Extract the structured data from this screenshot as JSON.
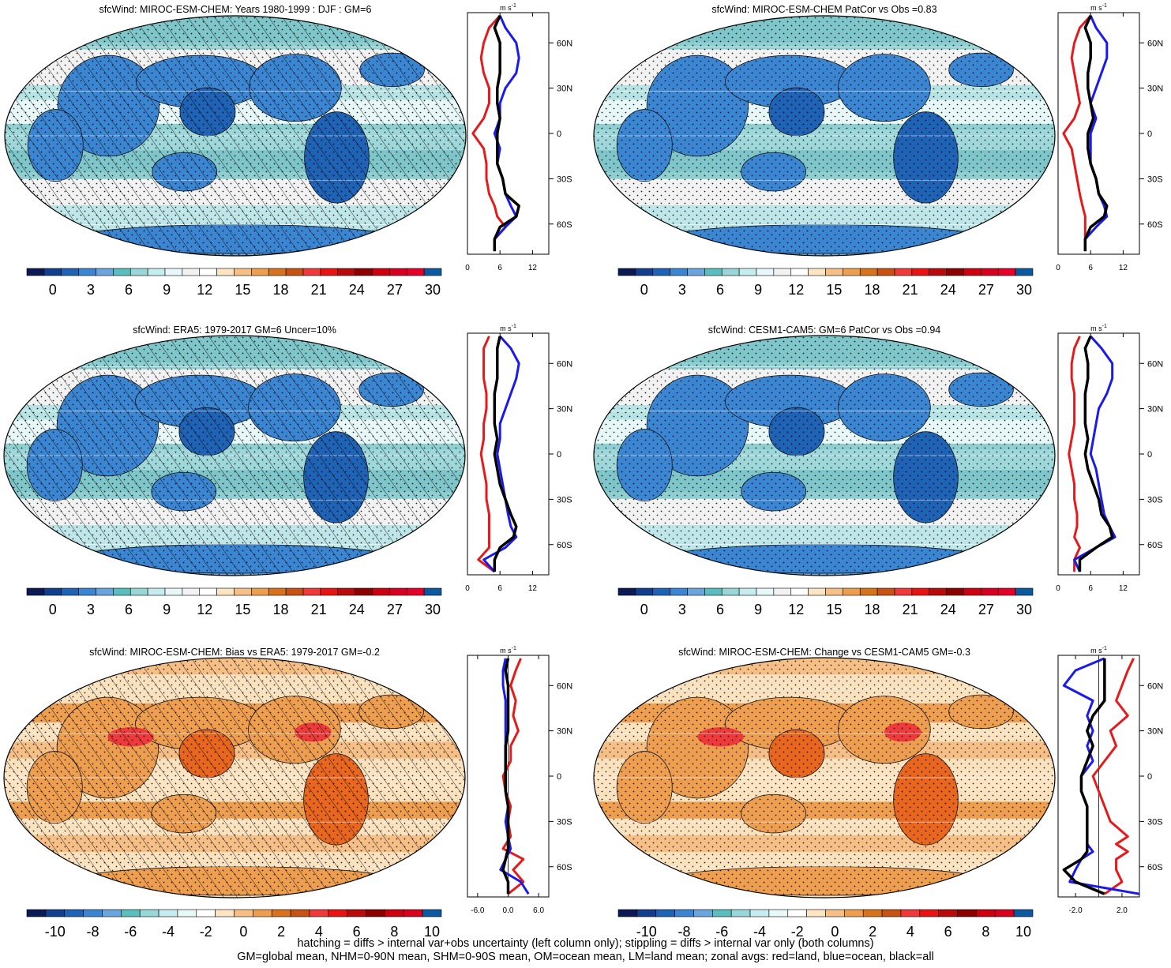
{
  "footer": {
    "line1": "hatching = diffs > internal var+obs uncertainty (left column only); stippling = diffs > internal var only (both columns)",
    "line2": "GM=global mean, NHM=0-90N mean, SHM=0-90S mean, OM=ocean mean, LM=land mean; zonal avgs: red=land, blue=ocean, black=all"
  },
  "colors": {
    "abs_scale": [
      "#0b1a55",
      "#113f8e",
      "#1e63b5",
      "#3b86d2",
      "#6aa5de",
      "#5cbdbf",
      "#99d6d8",
      "#c5ecee",
      "#e8f8f8",
      "#f2f2f2",
      "#ffffff",
      "#fde5c4",
      "#f6bf85",
      "#ee9e4f",
      "#d8731d",
      "#c85214",
      "#ee3a3a",
      "#e81313",
      "#b80c0c",
      "#8c0000",
      "#cc0010",
      "#d8001f",
      "#e5002c",
      "#0b5aa0"
    ],
    "diff_scale": [
      "#0b1a55",
      "#113f8e",
      "#1e63b5",
      "#3b86d2",
      "#6aa5de",
      "#5cbdbf",
      "#99d6d8",
      "#c5ecee",
      "#e8f8f8",
      "#ffffff",
      "#fde5c4",
      "#f6bf85",
      "#ee9e4f",
      "#d8731d",
      "#c85214",
      "#ee3a3a",
      "#e81313",
      "#b80c0c",
      "#8c0000",
      "#cc0010",
      "#d8001f",
      "#0b5aa0"
    ],
    "land": "#e61a1a",
    "ocean": "#1a1aee",
    "all": "#000000"
  },
  "chart_data": [
    {
      "type": "heatmap",
      "title": "sfcWind: MIROC-ESM-CHEM: Years 1980-1999 : DJF : GM=6",
      "colorbar_labels": [
        "0",
        "3",
        "6",
        "9",
        "12",
        "15",
        "18",
        "21",
        "24",
        "27",
        "30"
      ],
      "hatched": true,
      "tint": "blue",
      "zonal_mean": {
        "unit": "m s",
        "unit_sup": "-1",
        "x_ticks": [
          "0",
          "6",
          "12"
        ],
        "xlim": [
          0,
          15
        ],
        "y_ticks": [
          "60N",
          "30N",
          "0",
          "30S",
          "60S"
        ],
        "ylim": [
          -80,
          80
        ],
        "lat": [
          78,
          70,
          60,
          50,
          40,
          30,
          20,
          10,
          0,
          -10,
          -20,
          -30,
          -40,
          -48,
          -55,
          -62,
          -70,
          -78
        ],
        "land": [
          6,
          4,
          3,
          2.5,
          3,
          4,
          4,
          3,
          1,
          3,
          3.5,
          3.5,
          4,
          5,
          5.5,
          7,
          5,
          5
        ],
        "ocean": [
          6,
          7,
          9,
          9.5,
          9,
          7,
          6,
          6,
          5,
          6,
          5.5,
          6.5,
          7,
          8,
          9,
          7,
          5,
          5
        ],
        "all": [
          6,
          5,
          6,
          6,
          6,
          5.5,
          5.5,
          6,
          5.5,
          5.5,
          5.5,
          6.5,
          7,
          9.5,
          9,
          6,
          5,
          5
        ]
      }
    },
    {
      "type": "heatmap",
      "title": "sfcWind: MIROC-ESM-CHEM PatCor vs Obs =0.83",
      "colorbar_labels": [
        "0",
        "3",
        "6",
        "9",
        "12",
        "15",
        "18",
        "21",
        "24",
        "27",
        "30"
      ],
      "hatched": false,
      "tint": "blue",
      "zonal_mean": {
        "unit": "m s",
        "unit_sup": "-1",
        "x_ticks": [
          "0",
          "6",
          "12"
        ],
        "xlim": [
          0,
          15
        ],
        "y_ticks": [
          "60N",
          "30N",
          "0",
          "30S",
          "60S"
        ],
        "ylim": [
          -80,
          80
        ],
        "lat": [
          78,
          70,
          60,
          50,
          40,
          30,
          20,
          10,
          0,
          -10,
          -20,
          -30,
          -40,
          -48,
          -55,
          -62,
          -70,
          -78
        ],
        "land": [
          6,
          4,
          3,
          2.5,
          3,
          3.5,
          4,
          3,
          1,
          2.5,
          3,
          3.5,
          4,
          4.5,
          5,
          5,
          5,
          5
        ],
        "ocean": [
          6,
          7,
          9,
          9,
          8,
          7,
          6,
          7,
          6,
          6,
          6,
          7,
          7.5,
          8.5,
          9,
          7,
          5,
          5
        ],
        "all": [
          6,
          5,
          6,
          6,
          5.5,
          5.5,
          6,
          6.5,
          5.5,
          5.5,
          6,
          7,
          7.5,
          9,
          8.5,
          6,
          5,
          5
        ]
      }
    },
    {
      "type": "heatmap",
      "title": "sfcWind: ERA5: 1979-2017 GM=6 Uncer=10%",
      "colorbar_labels": [
        "0",
        "3",
        "6",
        "9",
        "12",
        "15",
        "18",
        "21",
        "24",
        "27",
        "30"
      ],
      "hatched": true,
      "tint": "blue",
      "zonal_mean": {
        "unit": "m s",
        "unit_sup": "-1",
        "x_ticks": [
          "0",
          "6",
          "12"
        ],
        "xlim": [
          0,
          15
        ],
        "y_ticks": [
          "60N",
          "30N",
          "0",
          "30S",
          "60S"
        ],
        "ylim": [
          -80,
          80
        ],
        "lat": [
          78,
          70,
          60,
          50,
          40,
          30,
          20,
          10,
          0,
          -10,
          -20,
          -30,
          -40,
          -48,
          -55,
          -62,
          -70,
          -78
        ],
        "land": [
          4,
          3,
          3,
          3,
          3.5,
          3.5,
          3,
          3,
          2.5,
          3,
          3.5,
          3.5,
          4,
          4,
          4,
          4,
          2,
          5
        ],
        "ocean": [
          6,
          8,
          9.5,
          9,
          8,
          7,
          6,
          6,
          5.5,
          6,
          6.5,
          7,
          7.5,
          8,
          9,
          7,
          3,
          5
        ],
        "all": [
          6,
          5.5,
          5.5,
          5.5,
          5,
          5,
          5,
          5.5,
          5,
          5.5,
          6,
          7,
          8,
          9,
          8.5,
          6,
          5,
          5
        ]
      }
    },
    {
      "type": "heatmap",
      "title": "sfcWind: CESM1-CAM5: GM=6 PatCor vs Obs =0.94",
      "colorbar_labels": [
        "0",
        "3",
        "6",
        "9",
        "12",
        "15",
        "18",
        "21",
        "24",
        "27",
        "30"
      ],
      "hatched": false,
      "tint": "blue",
      "zonal_mean": {
        "unit": "m s",
        "unit_sup": "-1",
        "x_ticks": [
          "0",
          "6",
          "12"
        ],
        "xlim": [
          0,
          15
        ],
        "y_ticks": [
          "60N",
          "30N",
          "0",
          "30S",
          "60S"
        ],
        "ylim": [
          -80,
          80
        ],
        "lat": [
          78,
          70,
          60,
          50,
          40,
          30,
          20,
          10,
          0,
          -10,
          -20,
          -30,
          -40,
          -48,
          -55,
          -62,
          -70,
          -78
        ],
        "land": [
          4,
          3,
          2.5,
          2.5,
          3,
          3,
          3,
          2.5,
          2,
          2.5,
          3,
          3,
          3.5,
          3.5,
          3,
          4,
          3,
          3
        ],
        "ocean": [
          6,
          8,
          10,
          10,
          9,
          7.5,
          7,
          6.5,
          6,
          7,
          7.5,
          8,
          8.5,
          9.5,
          10.5,
          7,
          3,
          4
        ],
        "all": [
          6,
          5,
          5.5,
          5.5,
          5,
          5,
          5,
          5.5,
          5,
          5.5,
          6.5,
          7.5,
          8,
          9.5,
          10,
          7,
          4,
          4
        ]
      }
    },
    {
      "type": "heatmap",
      "title": "sfcWind: MIROC-ESM-CHEM: Bias vs ERA5: 1979-2017 GM=-0.2",
      "colorbar_labels": [
        "-10",
        "-8",
        "-6",
        "-4",
        "-2",
        "0",
        "2",
        "4",
        "6",
        "8",
        "10"
      ],
      "hatched": true,
      "tint": "orange",
      "zonal_mean": {
        "unit": "m s",
        "unit_sup": "-1",
        "x_ticks": [
          "-6.0",
          "0.0",
          "6.0"
        ],
        "xlim": [
          -8,
          8
        ],
        "y_ticks": [
          "60N",
          "30N",
          "0",
          "30S",
          "60S"
        ],
        "ylim": [
          -80,
          80
        ],
        "lat": [
          78,
          70,
          60,
          50,
          40,
          30,
          20,
          10,
          0,
          -10,
          -20,
          -30,
          -40,
          -48,
          -55,
          -62,
          -70,
          -78
        ],
        "land": [
          2.5,
          1.5,
          0.5,
          1.5,
          1,
          2,
          0.5,
          0.5,
          -1,
          -0.5,
          0.5,
          0,
          0.5,
          -1,
          3,
          1,
          3,
          0
        ],
        "ocean": [
          -0.5,
          -1,
          -1,
          -0.5,
          -0.5,
          -0.5,
          -0.5,
          -0.5,
          -0.5,
          -0.5,
          0,
          -0.5,
          0,
          0.5,
          -0.5,
          -1.5,
          2.5,
          4
        ],
        "all": [
          0,
          -0.5,
          0,
          0,
          0,
          0,
          -0.5,
          -0.5,
          -0.5,
          -0.5,
          0,
          0,
          0,
          0,
          -0.5,
          -1,
          0,
          0
        ]
      }
    },
    {
      "type": "heatmap",
      "title": "sfcWind: MIROC-ESM-CHEM: Change vs CESM1-CAM5 GM=-0.3",
      "colorbar_labels": [
        "-10",
        "-8",
        "-6",
        "-4",
        "-2",
        "0",
        "2",
        "4",
        "6",
        "8",
        "10"
      ],
      "hatched": false,
      "tint": "orange",
      "zonal_mean": {
        "unit": "m s",
        "unit_sup": "-1",
        "x_ticks": [
          "-2.0",
          "2.0"
        ],
        "xlim": [
          -3.5,
          3.5
        ],
        "y_ticks": [
          "60N",
          "30N",
          "0",
          "30S",
          "60S"
        ],
        "ylim": [
          -80,
          80
        ],
        "lat": [
          78,
          70,
          60,
          50,
          40,
          30,
          20,
          10,
          0,
          -10,
          -20,
          -30,
          -40,
          -45,
          -50,
          -55,
          -62,
          -70,
          -78
        ],
        "land": [
          3,
          2.5,
          2,
          1.5,
          2.5,
          1,
          1.5,
          0.5,
          -0.5,
          0,
          0.5,
          1,
          2.5,
          1.5,
          2.5,
          1.5,
          1.5,
          2,
          0.5
        ],
        "ocean": [
          0.5,
          -2,
          -3,
          -0.5,
          -1,
          -0.5,
          -1,
          -0.5,
          -1.5,
          -1.5,
          -1,
          -1,
          -1,
          -1,
          -0.5,
          -1.5,
          -2,
          -2.5,
          3.5
        ],
        "all": [
          0.5,
          0.5,
          0.5,
          0.5,
          -0.5,
          -1,
          -0.5,
          -1,
          -1.5,
          -1.5,
          -1,
          -1,
          -1,
          -1,
          -1,
          -1.5,
          -3,
          -2,
          0.5
        ]
      }
    }
  ]
}
